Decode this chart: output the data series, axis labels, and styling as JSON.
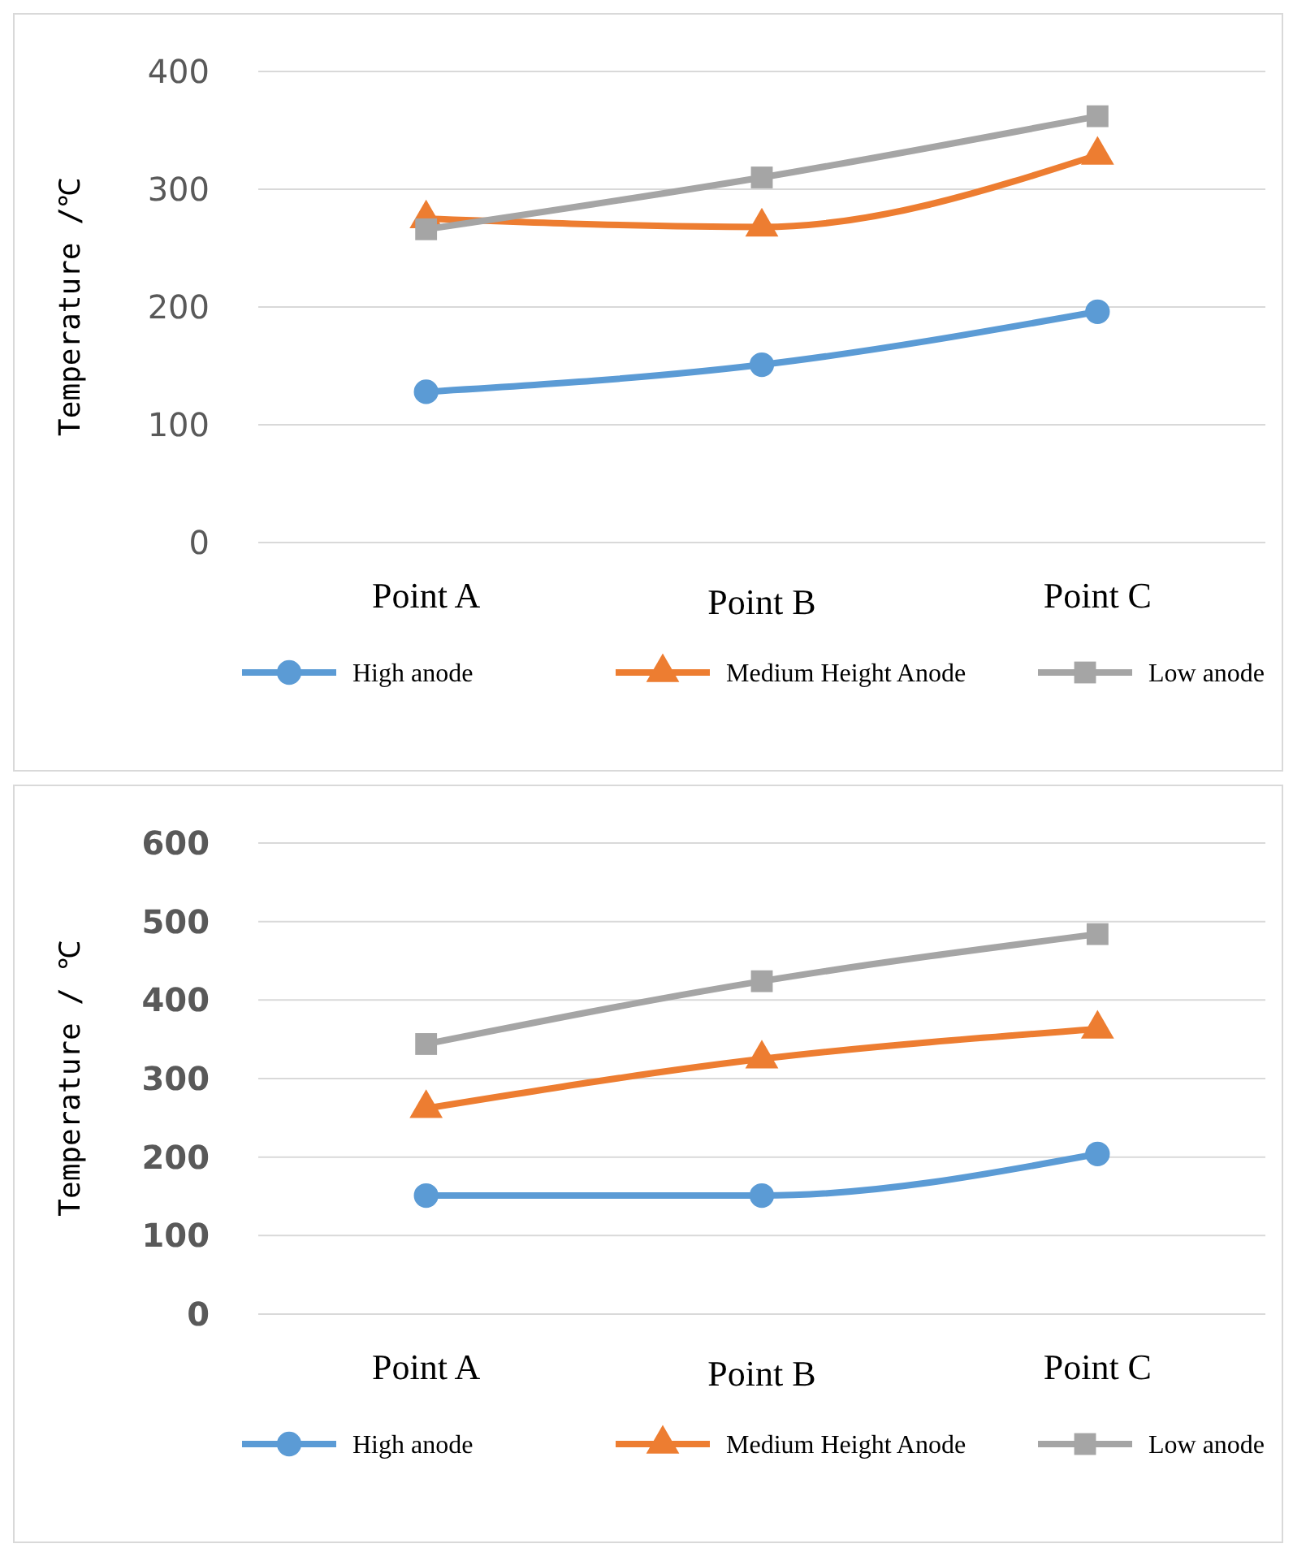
{
  "chart_data": [
    {
      "type": "line",
      "ylabel": "Temperature /℃",
      "categories": [
        "Point A",
        "Point B",
        "Point C"
      ],
      "ylim": [
        0,
        400
      ],
      "yticks": [
        0,
        100,
        200,
        300,
        400
      ],
      "grid": "y",
      "legend": "bottom",
      "line_style": "solid",
      "series": [
        {
          "name": "High anode",
          "color": "#5b9bd5",
          "marker": "circle",
          "values": [
            128,
            151,
            196
          ]
        },
        {
          "name": "Medium Height Anode",
          "color": "#ed7d31",
          "marker": "triangle",
          "values": [
            275,
            268,
            329
          ]
        },
        {
          "name": "Low anode",
          "color": "#a5a5a5",
          "marker": "square",
          "values": [
            266,
            310,
            362
          ]
        }
      ]
    },
    {
      "type": "line",
      "ylabel": "Temperature / ℃",
      "categories": [
        "Point A",
        "Point B",
        "Point C"
      ],
      "ylim": [
        0,
        600
      ],
      "yticks": [
        0,
        100,
        200,
        300,
        400,
        500,
        600
      ],
      "grid": "y",
      "legend": "bottom",
      "line_style": "solid",
      "series": [
        {
          "name": "High anode",
          "color": "#5b9bd5",
          "marker": "circle",
          "values": [
            151,
            151,
            204
          ]
        },
        {
          "name": "Medium Height Anode",
          "color": "#ed7d31",
          "marker": "triangle",
          "values": [
            262,
            325,
            363
          ]
        },
        {
          "name": "Low anode",
          "color": "#a5a5a5",
          "marker": "square",
          "values": [
            344,
            424,
            484
          ]
        }
      ]
    }
  ]
}
